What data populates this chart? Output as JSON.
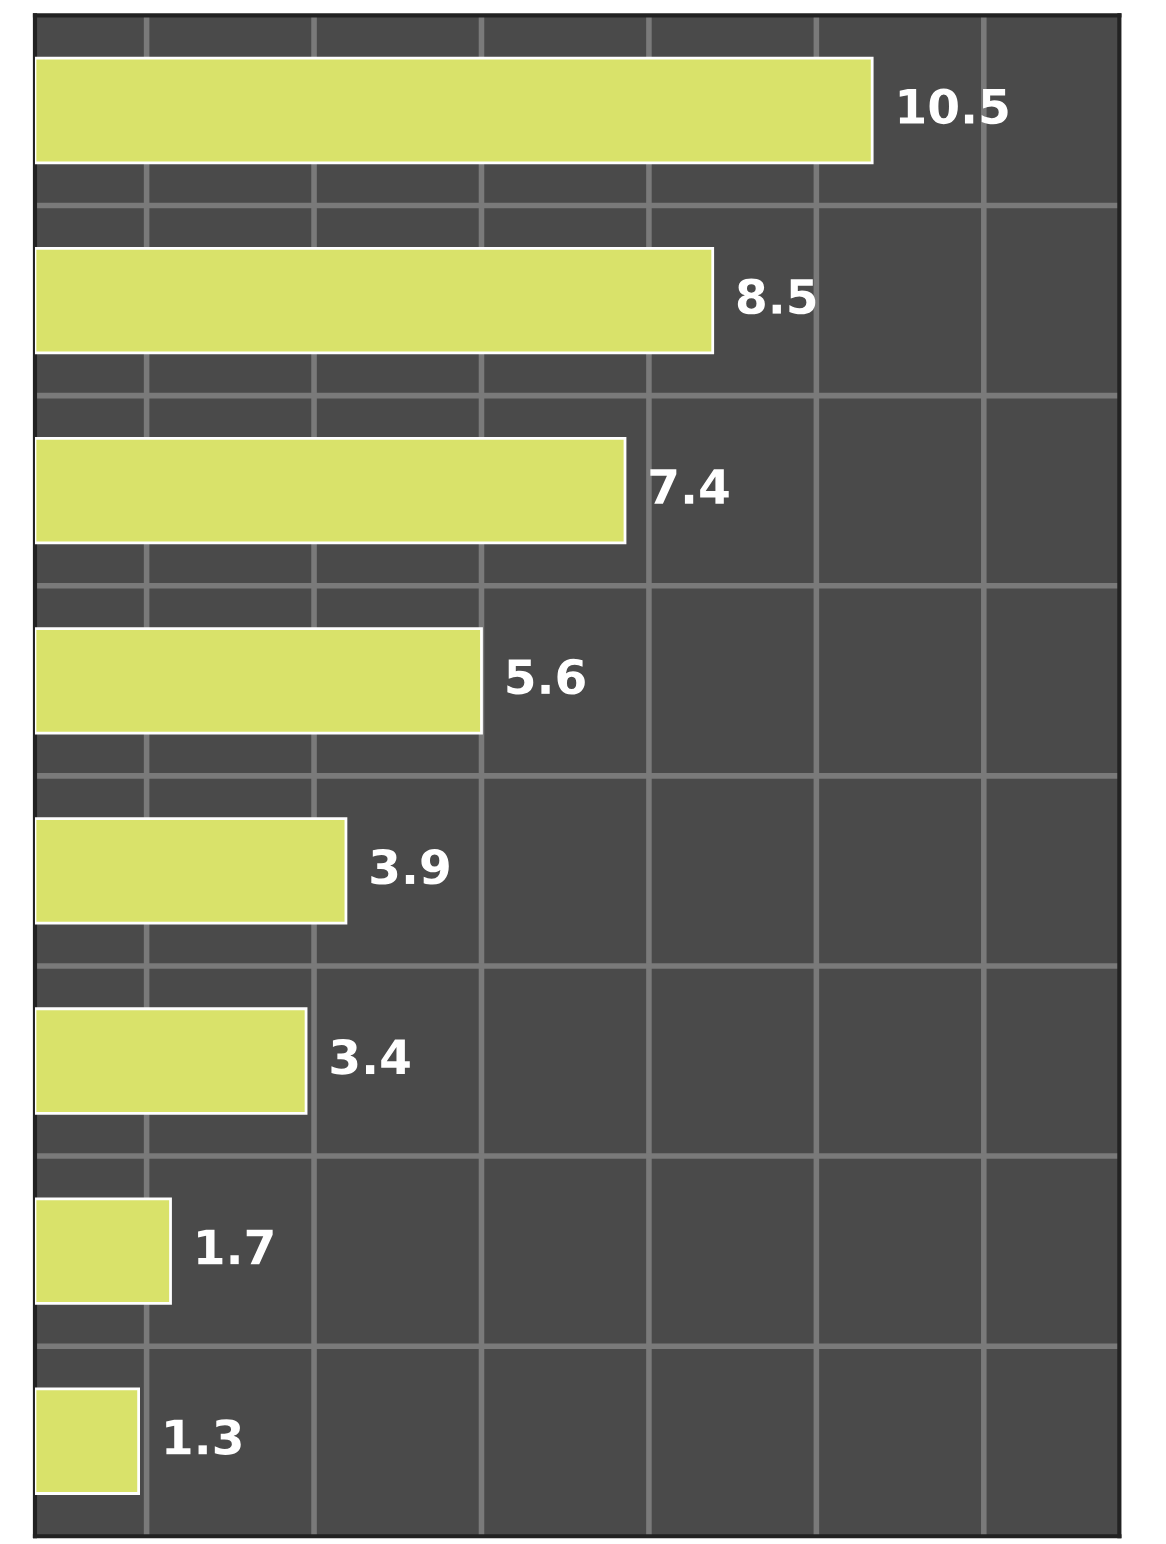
{
  "chart_data": {
    "type": "bar",
    "orientation": "horizontal",
    "categories": [
      null,
      null,
      null,
      null,
      null,
      null,
      null,
      null
    ],
    "values": [
      10.5,
      8.5,
      7.4,
      5.6,
      3.9,
      3.4,
      1.7,
      1.3
    ],
    "color": "#d9e26a",
    "data_labels": true,
    "xlim": [
      0,
      13.6
    ],
    "xticks": [
      {
        "value": 1.4,
        "label": null
      },
      {
        "value": 3.5,
        "label": null
      },
      {
        "value": 5.6,
        "label": null
      },
      {
        "value": 7.7,
        "label": null
      },
      {
        "value": 9.8,
        "label": null
      },
      {
        "value": 11.9,
        "label": null
      }
    ],
    "grid": true
  }
}
